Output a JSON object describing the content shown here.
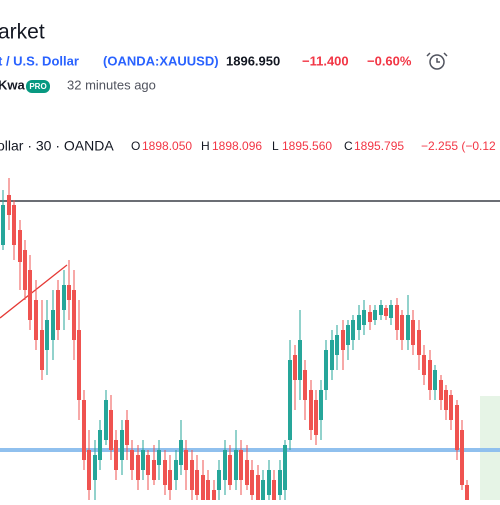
{
  "header": {
    "title": "arket",
    "symbol_name": "t / U.S. Dollar",
    "symbol_code": "(OANDA:XAUUSD)",
    "price": "1896.950",
    "change": "−11.400",
    "change_percent": "−0.60%"
  },
  "author": {
    "name": "Kwa",
    "badge": "PRO",
    "time": "32 minutes ago"
  },
  "legend": {
    "symbol": "ollar · 30 · OANDA",
    "open_label": "O",
    "open": "1898.050",
    "high_label": "H",
    "high": "1898.096",
    "low_label": "L",
    "low": "1895.560",
    "close_label": "C",
    "close": "1895.795",
    "change": "−2.255 (−0.12"
  }
}
